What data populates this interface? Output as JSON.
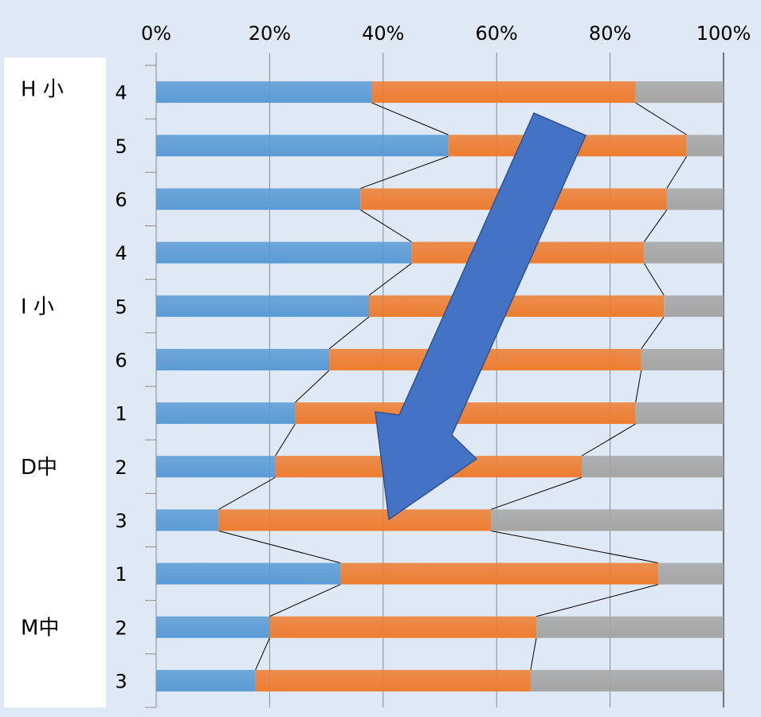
{
  "chart_data": {
    "type": "bar",
    "orientation": "horizontal",
    "stacked": "percent",
    "xlim": [
      0,
      100
    ],
    "x_ticks": [
      "0%",
      "20%",
      "40%",
      "60%",
      "80%",
      "100%"
    ],
    "groups": [
      {
        "label": "H 小",
        "categories": [
          "4",
          "5",
          "6"
        ]
      },
      {
        "label": "I 小",
        "categories": [
          "4",
          "5",
          "6"
        ]
      },
      {
        "label": "D中",
        "categories": [
          "1",
          "2",
          "3"
        ]
      },
      {
        "label": "M中",
        "categories": [
          "1",
          "2",
          "3"
        ]
      }
    ],
    "categories": [
      "4",
      "5",
      "6",
      "4",
      "5",
      "6",
      "1",
      "2",
      "3",
      "1",
      "2",
      "3"
    ],
    "series": [
      {
        "color": "#5b9bd5",
        "values": [
          38,
          51.5,
          36,
          45,
          37.5,
          30.5,
          24.5,
          21,
          11,
          32.5,
          20,
          17.5
        ]
      },
      {
        "color": "#ed7d31",
        "values": [
          46.5,
          42,
          54,
          41,
          52,
          55,
          60,
          54,
          48,
          56,
          47,
          48.5
        ]
      },
      {
        "color": "#a5a5a5",
        "values": [
          15.5,
          6.5,
          10,
          14,
          10.5,
          14.5,
          15.5,
          25,
          41,
          11.5,
          33,
          34
        ]
      }
    ],
    "series_lines": true,
    "grid": true,
    "annotation": {
      "type": "arrow",
      "direction": "down-left",
      "color": "#4472c4"
    }
  }
}
